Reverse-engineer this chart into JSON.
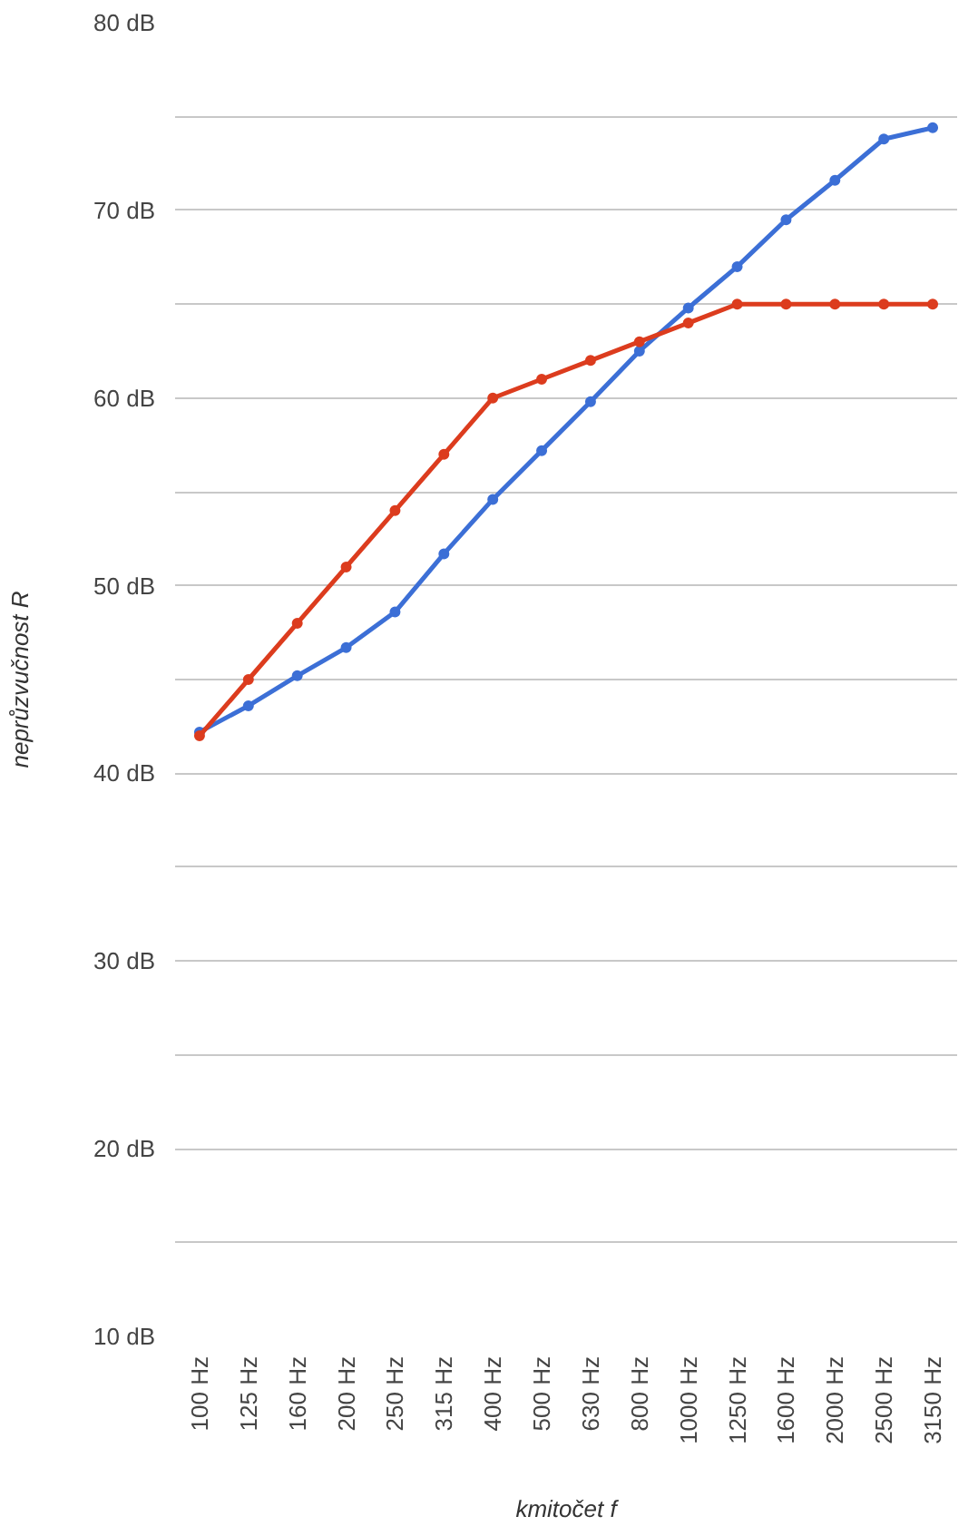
{
  "chart_data": {
    "type": "line",
    "xlabel": "kmitočet f",
    "ylabel": "neprůzvučnost R",
    "categories": [
      "100 Hz",
      "125 Hz",
      "160 Hz",
      "200 Hz",
      "250 Hz",
      "315 Hz",
      "400 Hz",
      "500 Hz",
      "630 Hz",
      "800 Hz",
      "1000 Hz",
      "1250 Hz",
      "1600 Hz",
      "2000 Hz",
      "2500 Hz",
      "3150 Hz"
    ],
    "series": [
      {
        "color": "#3c6fd6",
        "values": [
          42.2,
          43.6,
          45.2,
          46.7,
          48.6,
          51.7,
          54.6,
          57.2,
          59.8,
          62.5,
          64.8,
          67.0,
          69.5,
          71.6,
          73.8,
          74.4
        ]
      },
      {
        "color": "#dc3c1e",
        "values": [
          42,
          45,
          48,
          51,
          54,
          57,
          60,
          61,
          62,
          63,
          64,
          65,
          65,
          65,
          65,
          65
        ]
      }
    ],
    "ylim": [
      10,
      80
    ],
    "yticks": [
      {
        "value": 10,
        "label": "10 dB"
      },
      {
        "value": 15,
        "label": null
      },
      {
        "value": 20,
        "label": "20 dB"
      },
      {
        "value": 25,
        "label": null
      },
      {
        "value": 30,
        "label": "30 dB"
      },
      {
        "value": 35,
        "label": null
      },
      {
        "value": 40,
        "label": "40 dB"
      },
      {
        "value": 45,
        "label": null
      },
      {
        "value": 50,
        "label": "50 dB"
      },
      {
        "value": 55,
        "label": null
      },
      {
        "value": 60,
        "label": "60 dB"
      },
      {
        "value": 65,
        "label": null
      },
      {
        "value": 70,
        "label": "70 dB"
      },
      {
        "value": 75,
        "label": null
      },
      {
        "value": 80,
        "label": "80 dB"
      }
    ],
    "grid": "y",
    "marker": "circle",
    "line_style": "solid"
  }
}
